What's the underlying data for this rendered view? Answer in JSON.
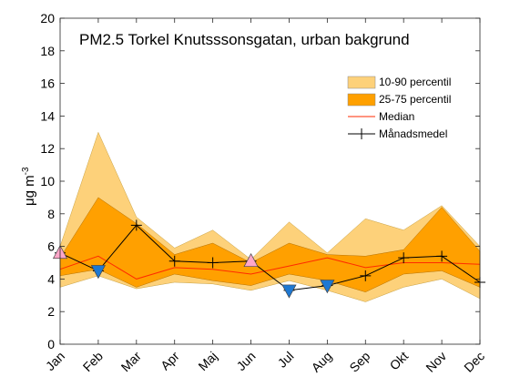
{
  "chart_data": {
    "type": "area",
    "title": "PM2.5 Torkel Knutsssonsgatan, urban bakgrund",
    "ylabel": "μg m-3",
    "ylim": [
      0,
      20
    ],
    "yticks": [
      0,
      2,
      4,
      6,
      8,
      10,
      12,
      14,
      16,
      18,
      20
    ],
    "categories": [
      "Jan",
      "Feb",
      "Mar",
      "Apr",
      "Maj",
      "Jun",
      "Jul",
      "Aug",
      "Sep",
      "Okt",
      "Nov",
      "Dec"
    ],
    "grid": false,
    "legend_position": "top-right",
    "series": [
      {
        "name": "10-90 percentil",
        "color": "#FDD17A",
        "low": [
          3.5,
          4.2,
          3.4,
          3.8,
          3.7,
          3.3,
          3.9,
          3.3,
          2.6,
          3.5,
          4.0,
          2.8
        ],
        "high": [
          6.0,
          13.0,
          7.8,
          5.9,
          7.0,
          5.2,
          7.5,
          5.6,
          7.7,
          7.0,
          8.5,
          6.0
        ]
      },
      {
        "name": "25-75 percentil",
        "color": "#FFA000",
        "low": [
          4.2,
          4.6,
          3.5,
          4.3,
          3.9,
          3.6,
          4.3,
          3.9,
          3.2,
          4.3,
          4.5,
          3.5
        ],
        "high": [
          5.3,
          9.0,
          7.4,
          5.5,
          6.2,
          5.0,
          6.2,
          5.5,
          5.4,
          5.8,
          8.4,
          5.7
        ]
      },
      {
        "name": "Median",
        "color": "#FF2A00",
        "values": [
          4.6,
          5.4,
          4.0,
          4.7,
          4.6,
          4.3,
          4.8,
          5.3,
          4.7,
          5.0,
          5.0,
          4.9
        ]
      },
      {
        "name": "Månadsmedel",
        "color": "#000000",
        "values": [
          5.6,
          4.5,
          7.3,
          5.1,
          5.0,
          5.1,
          3.3,
          3.6,
          4.2,
          5.3,
          5.4,
          3.8
        ]
      }
    ],
    "markers": [
      {
        "month": "Jan",
        "value": 5.6,
        "shape": "triangle-up",
        "color": "#FFA6C9"
      },
      {
        "month": "Feb",
        "value": 4.5,
        "shape": "triangle-down",
        "color": "#1E78D2"
      },
      {
        "month": "Jun",
        "value": 5.1,
        "shape": "triangle-up",
        "color": "#FFA6C9"
      },
      {
        "month": "Jul",
        "value": 3.3,
        "shape": "triangle-down",
        "color": "#1E78D2"
      },
      {
        "month": "Aug",
        "value": 3.6,
        "shape": "triangle-down",
        "color": "#1E78D2"
      }
    ]
  }
}
